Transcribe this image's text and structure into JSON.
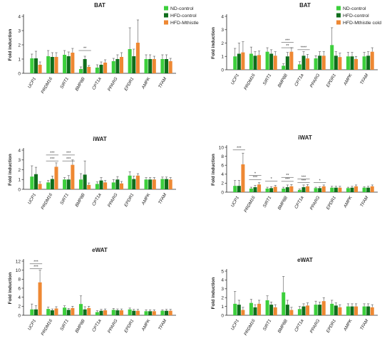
{
  "colors": {
    "nd": "#3ccf3c",
    "hfd": "#0f6e1c",
    "mth": "#ee8833",
    "axis": "#222222",
    "err": "#555555",
    "sig": "#333333"
  },
  "chart_data": [
    {
      "type": "bar",
      "panel_title": "BAT",
      "ylabel": "Fold induction",
      "ylim": [
        0,
        4
      ],
      "yticks": [
        0,
        1,
        2,
        3,
        4
      ],
      "categories": [
        "UCP1",
        "PRDM16",
        "SIRT1",
        "BMP8B",
        "CPT1a",
        "PPARG",
        "EPDR1",
        "AMPK",
        "TFAM"
      ],
      "legend": [
        "ND-control",
        "HFD-control",
        "HFD-Mthistle"
      ],
      "series": [
        {
          "name": "ND-control",
          "values": [
            1.05,
            1.2,
            1.3,
            0.3,
            0.4,
            0.85,
            1.7,
            1.0,
            1.0
          ],
          "err": [
            0.3,
            0.4,
            0.3,
            0.15,
            0.2,
            0.2,
            1.5,
            0.3,
            0.3
          ]
        },
        {
          "name": "HFD-control",
          "values": [
            1.05,
            1.15,
            1.2,
            1.0,
            0.6,
            1.0,
            1.2,
            1.0,
            1.0
          ],
          "err": [
            0.5,
            0.3,
            0.3,
            0.2,
            0.2,
            0.3,
            0.5,
            0.3,
            0.3
          ]
        },
        {
          "name": "HFD-Mthistle",
          "values": [
            0.6,
            1.15,
            1.45,
            0.45,
            0.75,
            1.15,
            2.15,
            1.0,
            0.85
          ],
          "err": [
            0.2,
            0.3,
            0.3,
            0.1,
            0.2,
            0.3,
            1.6,
            0.2,
            0.2
          ]
        }
      ],
      "significance": [
        {
          "category": "BMP8B",
          "label": "**",
          "value": 1.6
        }
      ]
    },
    {
      "type": "bar",
      "panel_title": "BAT",
      "ylabel": "Fold induction",
      "ylim": [
        0,
        4
      ],
      "yticks": [
        0,
        1,
        2,
        3,
        4
      ],
      "categories": [
        "UCP1",
        "PRDM16",
        "SIRT1",
        "BMP8B",
        "CPT1a",
        "PPARG",
        "EPDR1",
        "AMPK",
        "TFAM"
      ],
      "legend": [
        "ND-control",
        "HFD-control",
        "HFD-Mthistle cold"
      ],
      "series": [
        {
          "name": "ND-control",
          "values": [
            1.0,
            1.2,
            1.35,
            0.3,
            0.4,
            0.85,
            1.85,
            1.0,
            1.0
          ],
          "err": [
            0.6,
            0.5,
            0.3,
            0.15,
            0.2,
            0.2,
            1.3,
            0.3,
            0.3
          ]
        },
        {
          "name": "HFD-control",
          "values": [
            1.2,
            1.05,
            1.2,
            1.0,
            1.05,
            1.05,
            1.05,
            1.0,
            1.05
          ],
          "err": [
            0.8,
            0.3,
            0.3,
            0.3,
            0.3,
            0.3,
            0.3,
            0.3,
            0.3
          ]
        },
        {
          "name": "HFD-Mthistle cold",
          "values": [
            1.3,
            1.1,
            1.05,
            1.35,
            0.85,
            1.05,
            0.95,
            0.8,
            1.35
          ],
          "err": [
            0.8,
            0.3,
            0.3,
            0.3,
            0.3,
            0.3,
            0.3,
            0.2,
            0.3
          ]
        }
      ],
      "significance": [
        {
          "category": "BMP8B",
          "label": "***",
          "value": 2.05
        },
        {
          "category": "BMP8B",
          "label": "**",
          "value": 1.65
        },
        {
          "category": "CPT1a",
          "label": "****",
          "value": 1.5
        }
      ]
    },
    {
      "type": "bar",
      "panel_title": "iWAT",
      "ylabel": "Fold induction",
      "ylim": [
        0,
        4
      ],
      "yticks": [
        0,
        1,
        2,
        3,
        4
      ],
      "categories": [
        "UCP1",
        "PRDM16",
        "SIRT1",
        "BMP8B",
        "CPT1a",
        "PPARG",
        "EPDR1",
        "AMPK",
        "TFAM"
      ],
      "series": [
        {
          "name": "ND-control",
          "values": [
            1.3,
            0.7,
            1.0,
            1.0,
            0.55,
            0.7,
            1.4,
            1.0,
            1.05
          ],
          "err": [
            1.1,
            0.2,
            0.2,
            0.6,
            0.2,
            0.3,
            0.4,
            0.2,
            0.2
          ]
        },
        {
          "name": "HFD-control",
          "values": [
            1.55,
            1.05,
            1.0,
            1.5,
            0.9,
            1.0,
            1.05,
            1.0,
            1.05
          ],
          "err": [
            0.7,
            0.3,
            0.4,
            1.4,
            0.3,
            0.3,
            0.3,
            0.2,
            0.2
          ]
        },
        {
          "name": "HFD-Mthistle",
          "values": [
            0.55,
            2.3,
            2.5,
            0.45,
            0.7,
            0.6,
            1.4,
            1.0,
            1.0
          ],
          "err": [
            0.2,
            0.4,
            0.5,
            0.2,
            0.2,
            0.2,
            0.2,
            0.2,
            0.2
          ]
        }
      ],
      "significance": [
        {
          "category": "PRDM16",
          "label": "***",
          "value": 3.5
        },
        {
          "category": "PRDM16",
          "label": "***",
          "value": 2.9
        },
        {
          "category": "SIRT1",
          "label": "***",
          "value": 3.5
        },
        {
          "category": "SIRT1",
          "label": "***",
          "value": 2.9
        }
      ]
    },
    {
      "type": "bar",
      "panel_title": "iWAT",
      "ylabel": "Fold induction",
      "ylim": [
        0,
        10
      ],
      "yticks": [
        0,
        2,
        4,
        6,
        8,
        10
      ],
      "categories": [
        "UCP1",
        "PRDM16",
        "SIRT1",
        "BMP8B",
        "CPT1a",
        "PPARG",
        "EPDR1",
        "AMPK",
        "TFAM"
      ],
      "series": [
        {
          "name": "ND-control",
          "values": [
            1.4,
            0.8,
            0.8,
            0.8,
            0.5,
            0.9,
            1.0,
            0.9,
            1.0
          ],
          "err": [
            1.2,
            0.3,
            0.3,
            0.3,
            0.2,
            0.2,
            0.3,
            0.2,
            0.2
          ]
        },
        {
          "name": "HFD-control",
          "values": [
            1.4,
            1.1,
            0.9,
            1.1,
            1.1,
            0.9,
            1.0,
            1.0,
            1.0
          ],
          "err": [
            1.2,
            0.4,
            0.3,
            0.5,
            0.5,
            0.3,
            0.3,
            0.3,
            0.3
          ]
        },
        {
          "name": "HFD-Mthistle",
          "values": [
            6.2,
            1.7,
            1.2,
            1.3,
            1.3,
            1.3,
            1.0,
            1.3,
            1.3
          ],
          "err": [
            2.5,
            0.4,
            0.3,
            0.4,
            0.4,
            0.3,
            0.3,
            0.3,
            0.3
          ]
        }
      ],
      "significance": [
        {
          "category": "UCP1",
          "label": "***",
          "value": 9.4
        },
        {
          "category": "PRDM16",
          "label": "*",
          "value": 3.7
        },
        {
          "category": "PRDM16",
          "label": "***",
          "value": 2.8
        },
        {
          "category": "SIRT1",
          "label": "*",
          "value": 2.5
        },
        {
          "category": "BMP8B",
          "label": "**",
          "value": 3.3
        },
        {
          "category": "BMP8B",
          "label": "***",
          "value": 2.4
        },
        {
          "category": "CPT1a",
          "label": "***",
          "value": 2.9
        },
        {
          "category": "CPT1a",
          "label": "***",
          "value": 2.1
        },
        {
          "category": "PPARG",
          "label": "*",
          "value": 2.1
        }
      ]
    },
    {
      "type": "bar",
      "panel_title": "eWAT",
      "ylabel": "Fold induction",
      "ylim": [
        0,
        12
      ],
      "yticks": [
        0,
        2,
        4,
        6,
        8,
        10,
        12
      ],
      "categories": [
        "UCP1",
        "PRDM16",
        "SIRT1",
        "BMP8B",
        "CPT1a",
        "PPARG",
        "EPDR1",
        "AMPK",
        "TFAM"
      ],
      "series": [
        {
          "name": "ND-control",
          "values": [
            1.3,
            1.4,
            1.7,
            2.5,
            0.7,
            1.2,
            1.3,
            0.9,
            1.0
          ],
          "err": [
            1.2,
            0.4,
            0.4,
            1.8,
            0.3,
            0.3,
            0.3,
            0.3,
            0.2
          ]
        },
        {
          "name": "HFD-control",
          "values": [
            1.3,
            1.1,
            1.2,
            1.3,
            1.0,
            1.1,
            1.0,
            0.9,
            1.0
          ],
          "err": [
            0.8,
            0.3,
            0.3,
            0.6,
            0.3,
            0.3,
            0.3,
            0.3,
            0.3
          ]
        },
        {
          "name": "HFD-Mthistle",
          "values": [
            7.3,
            1.5,
            1.6,
            1.6,
            1.1,
            1.1,
            1.0,
            0.9,
            1.0
          ],
          "err": [
            2.7,
            0.4,
            0.4,
            0.4,
            0.3,
            0.3,
            0.3,
            0.3,
            0.3
          ]
        }
      ],
      "significance": [
        {
          "category": "UCP1",
          "label": "***",
          "value": 11.4
        },
        {
          "category": "UCP1",
          "label": "***",
          "value": 10.3
        }
      ]
    },
    {
      "type": "bar",
      "panel_title": "eWAT",
      "ylabel": "Fold induction",
      "ylim": [
        0,
        5
      ],
      "yticks": [
        0,
        1,
        2,
        3,
        4,
        5
      ],
      "categories": [
        "UCP1",
        "PRDM16",
        "SIRT1",
        "BMP8B",
        "CPT1a",
        "PPARG",
        "EPDR1",
        "AMPK",
        "TFAM"
      ],
      "series": [
        {
          "name": "ND-control",
          "values": [
            1.3,
            1.4,
            1.7,
            2.6,
            0.7,
            1.2,
            1.3,
            1.0,
            1.0
          ],
          "err": [
            1.4,
            0.4,
            0.5,
            1.8,
            0.3,
            0.4,
            0.4,
            0.3,
            0.3
          ]
        },
        {
          "name": "HFD-control",
          "values": [
            1.2,
            0.9,
            1.2,
            1.2,
            1.0,
            1.2,
            1.1,
            1.0,
            1.0
          ],
          "err": [
            0.5,
            0.3,
            0.3,
            0.5,
            0.3,
            0.3,
            0.3,
            0.3,
            0.3
          ]
        },
        {
          "name": "HFD-Mthistle cold",
          "values": [
            0.6,
            1.3,
            0.9,
            0.6,
            1.1,
            1.6,
            0.9,
            1.0,
            0.9
          ],
          "err": [
            0.3,
            0.4,
            0.3,
            0.3,
            0.3,
            0.4,
            0.3,
            0.3,
            0.3
          ]
        }
      ],
      "significance": []
    }
  ]
}
